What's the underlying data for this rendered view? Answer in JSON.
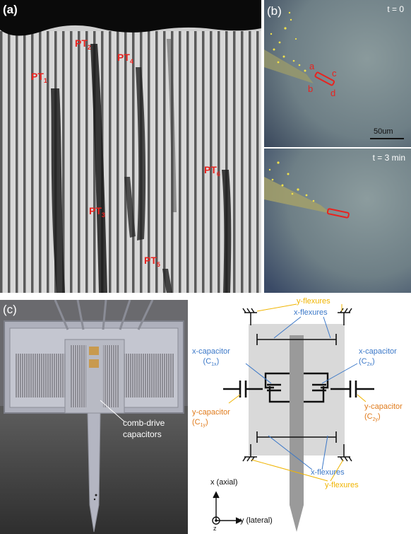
{
  "panel_a": {
    "label": "(a)",
    "tubes": [
      {
        "sub": "1",
        "name": "PT"
      },
      {
        "sub": "2",
        "name": "PT"
      },
      {
        "sub": "3",
        "name": "PT"
      },
      {
        "sub": "4",
        "name": "PT"
      },
      {
        "sub": "5",
        "name": "PT"
      },
      {
        "sub": "6",
        "name": "PT"
      }
    ]
  },
  "panel_b": {
    "label": "(b)",
    "top": {
      "time": "t = 0",
      "marks": [
        "a",
        "b",
        "c",
        "d"
      ],
      "scale": "50um"
    },
    "bottom": {
      "time": "t = 3 min"
    }
  },
  "panel_c": {
    "label": "(c)",
    "photo_annotation": [
      "comb-drive",
      "capacitors"
    ],
    "diagram": {
      "y_flexures_top": "y-flexures",
      "x_flexures_top": "x-flexures",
      "x_cap_left": [
        "x-capacitor",
        "(C",
        "1x",
        ")"
      ],
      "x_cap_right": [
        "x-capacitor",
        "(C",
        "2x",
        ")"
      ],
      "y_cap_left": [
        "y-capacitor",
        "(C",
        "1y",
        ")"
      ],
      "y_cap_right": [
        "y-capacitor",
        "(C",
        "2y",
        ")"
      ],
      "x_flexures_bottom": "x-flexures",
      "y_flexures_bottom": "y-flexures",
      "axis_x": "x (axial)",
      "axis_y": "y (lateral)",
      "axis_z": "z"
    }
  },
  "colors": {
    "label_red": "#e8231f",
    "blue": "#3b78c8",
    "orange": "#e07b1c",
    "yellow": "#f0b400"
  }
}
